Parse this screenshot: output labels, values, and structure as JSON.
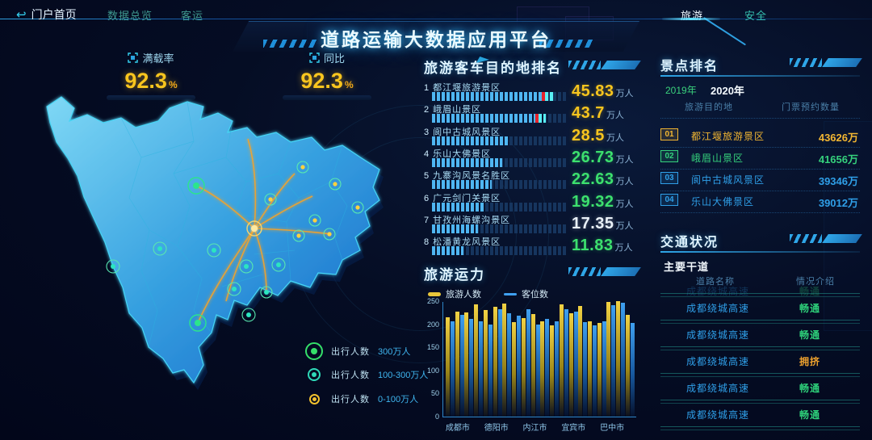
{
  "header": {
    "back_label": "门户首页",
    "menu_left": [
      {
        "label": "数据总览"
      },
      {
        "label": "客运"
      }
    ],
    "title": "道路运输大数据应用平台",
    "menu_right": [
      {
        "label": "旅游",
        "active": true
      },
      {
        "label": "安全",
        "active": false
      }
    ]
  },
  "stats": [
    {
      "label": "满载率",
      "value": "92.3",
      "unit": "%"
    },
    {
      "label": "同比",
      "value": "92.3",
      "unit": "%"
    }
  ],
  "map": {
    "region": "四川省",
    "legend": [
      {
        "label": "出行人数",
        "value": "300万人",
        "color": "#35e06a",
        "size": "large"
      },
      {
        "label": "出行人数",
        "value": "100-300万人",
        "color": "#2fd9b8",
        "size": "medium"
      },
      {
        "label": "出行人数",
        "value": "0-100万人",
        "color": "#f2c12e",
        "size": "small"
      }
    ]
  },
  "ranking": {
    "title": "旅游客车目的地排名",
    "unit": "万人",
    "rows": [
      {
        "rank": "1",
        "name": "都江堰旅游景区",
        "value": "45.83",
        "pct": 81,
        "value_color": "#f8c51e",
        "red": true,
        "tail_to": 90
      },
      {
        "rank": "2",
        "name": "峨眉山景区",
        "value": "43.7",
        "pct": 76,
        "value_color": "#f8c51e",
        "red": true,
        "tail_to": 84
      },
      {
        "rank": "3",
        "name": "阆中古城风景区",
        "value": "28.5",
        "pct": 56,
        "value_color": "#f8c51e",
        "red": false,
        "tail_to": 0
      },
      {
        "rank": "4",
        "name": "乐山大佛景区",
        "value": "26.73",
        "pct": 52,
        "value_color": "#3ce06e",
        "red": false,
        "tail_to": 0
      },
      {
        "rank": "5",
        "name": "九寨沟风景名胜区",
        "value": "22.63",
        "pct": 44,
        "value_color": "#3ce06e",
        "red": false,
        "tail_to": 0
      },
      {
        "rank": "6",
        "name": "广元剑门关景区",
        "value": "19.32",
        "pct": 38,
        "value_color": "#3ce06e",
        "red": false,
        "tail_to": 0
      },
      {
        "rank": "7",
        "name": "甘孜州海螺沟景区",
        "value": "17.35",
        "pct": 34,
        "value_color": "#e9f1f8",
        "red": false,
        "tail_to": 0
      },
      {
        "rank": "8",
        "name": "松潘黄龙风景区",
        "value": "11.83",
        "pct": 23,
        "value_color": "#3ce06e",
        "red": false,
        "tail_to": 0
      }
    ]
  },
  "capacity": {
    "title": "旅游运力",
    "legend": [
      {
        "label": "旅游人数"
      },
      {
        "label": "客位数"
      }
    ]
  },
  "scenic": {
    "title": "景点排名",
    "tabs": [
      {
        "label": "2019年",
        "active": false
      },
      {
        "label": "2020年",
        "active": true
      }
    ],
    "columns": [
      "旅游目的地",
      "门票预约数量"
    ],
    "rows": [
      {
        "rank": "01",
        "name": "都江堰旅游景区",
        "value": "43626万",
        "color": "#f2b632"
      },
      {
        "rank": "02",
        "name": "峨眉山景区",
        "value": "41656万",
        "color": "#35d17c"
      },
      {
        "rank": "03",
        "name": "阆中古城风景区",
        "value": "39346万",
        "color": "#2f9fe8"
      },
      {
        "rank": "04",
        "name": "乐山大佛景区",
        "value": "39012万",
        "color": "#2f9fe8"
      }
    ]
  },
  "traffic": {
    "title": "交通状况",
    "subtitle": "主要干道",
    "columns": [
      "道路名称",
      "情况介绍"
    ],
    "partial_row": {
      "road": "成都绕城高速",
      "status": "畅通",
      "status_color": "#2ed17a"
    },
    "rows": [
      {
        "road": "成都绕城高速",
        "status": "畅通",
        "status_color": "#2ed17a"
      },
      {
        "road": "成都绕城高速",
        "status": "畅通",
        "status_color": "#2ed17a"
      },
      {
        "road": "成都绕城高速",
        "status": "拥挤",
        "status_color": "#f0a32e"
      },
      {
        "road": "成都绕城高速",
        "status": "畅通",
        "status_color": "#2ed17a"
      },
      {
        "road": "成都绕城高速",
        "status": "畅通",
        "status_color": "#2ed17a"
      }
    ]
  },
  "colors": {
    "accent_cyan": "#35d1f0",
    "accent_yellow": "#f8c51e",
    "accent_green": "#2ed17a",
    "accent_red": "#e8232b",
    "accent_orange": "#f0a32e",
    "bar_blue": "#4fb6f2",
    "flight_line": "#f0a32e"
  },
  "icons": {
    "back": "return-arrow-icon",
    "stat": "scan-target-icon",
    "legend_marker": "ring-marker-icon"
  },
  "chart_data": [
    {
      "type": "bar",
      "orientation": "horizontal",
      "title": "旅游客车目的地排名",
      "categories": [
        "都江堰旅游景区",
        "峨眉山景区",
        "阆中古城风景区",
        "乐山大佛景区",
        "九寨沟风景名胜区",
        "广元剑门关景区",
        "甘孜州海螺沟景区",
        "松潘黄龙风景区"
      ],
      "values": [
        45.83,
        43.7,
        28.5,
        26.73,
        22.63,
        19.32,
        17.35,
        11.83
      ],
      "unit": "万人",
      "xlim": [
        0,
        50
      ]
    },
    {
      "type": "bar",
      "title": "旅游运力",
      "categories": [
        "成都市",
        "德阳市",
        "内江市",
        "宜宾市",
        "巴中市"
      ],
      "series": [
        {
          "name": "旅游人数",
          "color": "#e8c63a",
          "values": [
            215,
            228,
            225,
            243,
            230,
            237,
            245,
            205,
            213,
            222,
            207,
            198,
            243,
            224,
            240,
            207,
            203,
            248,
            250,
            220
          ]
        },
        {
          "name": "客位数",
          "color": "#3fa0f0",
          "values": [
            207,
            220,
            212,
            207,
            200,
            232,
            224,
            218,
            232,
            200,
            212,
            207,
            233,
            227,
            205,
            198,
            207,
            242,
            246,
            203
          ]
        }
      ],
      "ylim": [
        0,
        250
      ],
      "yticks": [
        0,
        50,
        100,
        150,
        200,
        250
      ],
      "legend_position": "top",
      "grid": false
    }
  ]
}
